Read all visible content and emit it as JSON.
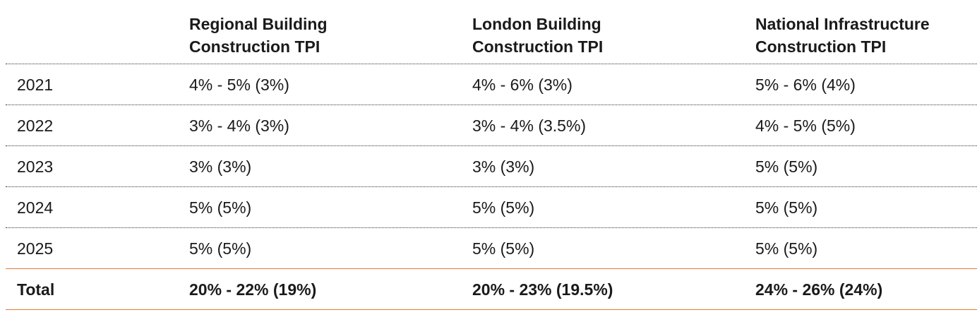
{
  "table": {
    "headers": [
      [
        "",
        ""
      ],
      [
        "Regional Building",
        "Construction TPI"
      ],
      [
        "London Building",
        "Construction TPI"
      ],
      [
        "National Infrastructure",
        "Construction TPI"
      ]
    ],
    "rows": [
      [
        "2021",
        "4% - 5% (3%)",
        "4% - 6% (3%)",
        "5% - 6% (4%)"
      ],
      [
        "2022",
        "3% - 4% (3%)",
        "3% - 4% (3.5%)",
        "4% - 5% (5%)"
      ],
      [
        "2023",
        "3% (3%)",
        "3% (3%)",
        "5% (5%)"
      ],
      [
        "2024",
        "5% (5%)",
        "5% (5%)",
        "5% (5%)"
      ],
      [
        "2025",
        "5% (5%)",
        "5% (5%)",
        "5% (5%)"
      ]
    ],
    "total": [
      "Total",
      "20% - 22% (19%)",
      "20% - 23% (19.5%)",
      "24% - 26% (24%)"
    ]
  },
  "colors": {
    "text": "#1a1a1a",
    "dotted_rule": "#333333",
    "accent_rule": "#e07b39",
    "background": "#ffffff"
  }
}
